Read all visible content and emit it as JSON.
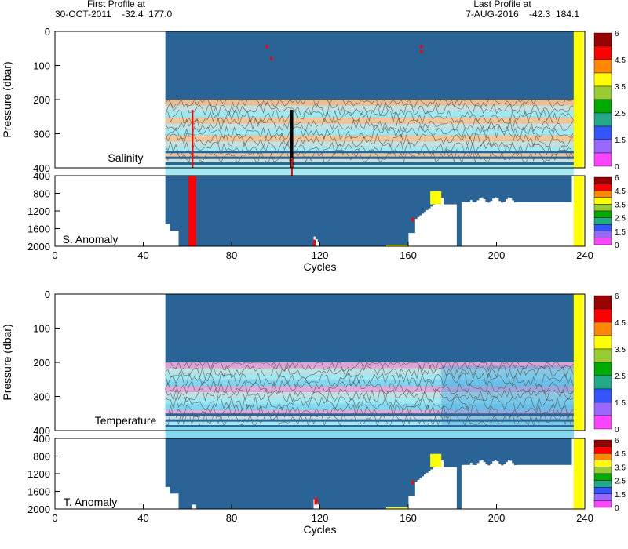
{
  "header": {
    "first_label": "First Profile at",
    "first_value": "30-OCT-2011    -32.4  177.0",
    "last_label": "Last Profile at",
    "last_value": "7-AUG-2016    -42.3  184.1"
  },
  "colors": {
    "background": "#2a6496",
    "band_orange": "#f4c395",
    "band_teal": "#bfe4e4",
    "band_cyan": "#9ee9f2",
    "band_pink": "#e7a6d8",
    "band_lightblue": "#7fd6ee",
    "band_blue": "#4aa3e0",
    "last_column": "#ffff00",
    "flag_red": "#ff0000",
    "contour": "#555555"
  },
  "colorbar": {
    "ticks": [
      "6",
      "4.5",
      "3.5",
      "2.5",
      "1.5",
      "0"
    ],
    "colors": [
      "#990000",
      "#ff0000",
      "#ff8800",
      "#ffff00",
      "#99cc33",
      "#00aa00",
      "#22aa88",
      "#3355ff",
      "#9966ff",
      "#ff44ff"
    ]
  },
  "chart_data": [
    {
      "type": "heatmap",
      "label": "Salinity",
      "ylabel": "Pressure (dbar)",
      "xlim": [
        0,
        240
      ],
      "ylim": [
        0,
        400
      ],
      "yticks": [
        0,
        100,
        200,
        300,
        400
      ],
      "data_x_range": [
        50,
        240
      ],
      "band_start_pressure": 200,
      "contours": true
    },
    {
      "type": "heatmap",
      "label": "S. Anomaly",
      "xlim": [
        0,
        240
      ],
      "ylim": [
        400,
        2000
      ],
      "yticks": [
        400,
        800,
        1200,
        1600,
        2000
      ]
    },
    {
      "type": "heatmap",
      "label": "Temperature",
      "ylabel": "Pressure (dbar)",
      "xlim": [
        0,
        240
      ],
      "ylim": [
        0,
        400
      ],
      "yticks": [
        0,
        100,
        200,
        300,
        400
      ],
      "data_x_range": [
        50,
        240
      ],
      "band_start_pressure": 200,
      "contours": true
    },
    {
      "type": "heatmap",
      "label": "T. Anomaly",
      "xlabel": "Cycles",
      "xlim": [
        0,
        240
      ],
      "ylim": [
        400,
        2000
      ],
      "yticks": [
        400,
        800,
        1200,
        1600,
        2000
      ]
    }
  ],
  "x_axis": {
    "label": "Cycles",
    "ticks": [
      0,
      40,
      80,
      120,
      160,
      200,
      240
    ]
  }
}
